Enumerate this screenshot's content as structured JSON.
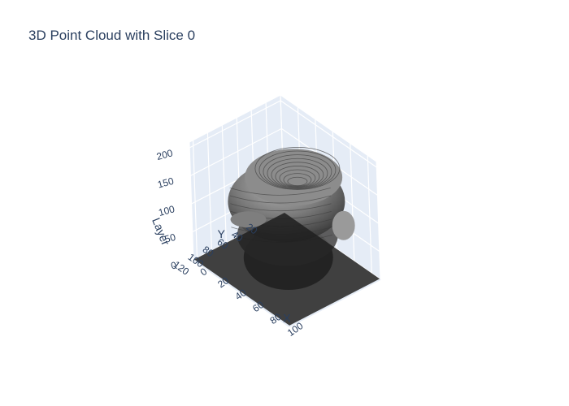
{
  "chart_data": {
    "type": "scatter3d",
    "title": "3D Point Cloud with Slice 0",
    "axes": {
      "x": {
        "title": "X",
        "ticks": [
          0,
          20,
          40,
          60,
          80,
          100
        ],
        "range": [
          0,
          110
        ]
      },
      "y": {
        "title": "Y",
        "ticks": [
          20,
          40,
          60,
          80,
          100,
          120
        ],
        "range": [
          0,
          125
        ]
      },
      "z": {
        "title": "Layer",
        "ticks": [
          0,
          50,
          100,
          150,
          200
        ],
        "range": [
          0,
          210
        ]
      }
    },
    "grid": true,
    "slice": {
      "layer": 0,
      "color": "#1e1e1e",
      "opacity": 0.85
    },
    "point_cloud": {
      "color": "#6b6b6b",
      "description_units": "voxels"
    },
    "colors": {
      "pane": "#e5ecf6",
      "grid": "#ffffff",
      "text": "#2a3f5f"
    }
  }
}
